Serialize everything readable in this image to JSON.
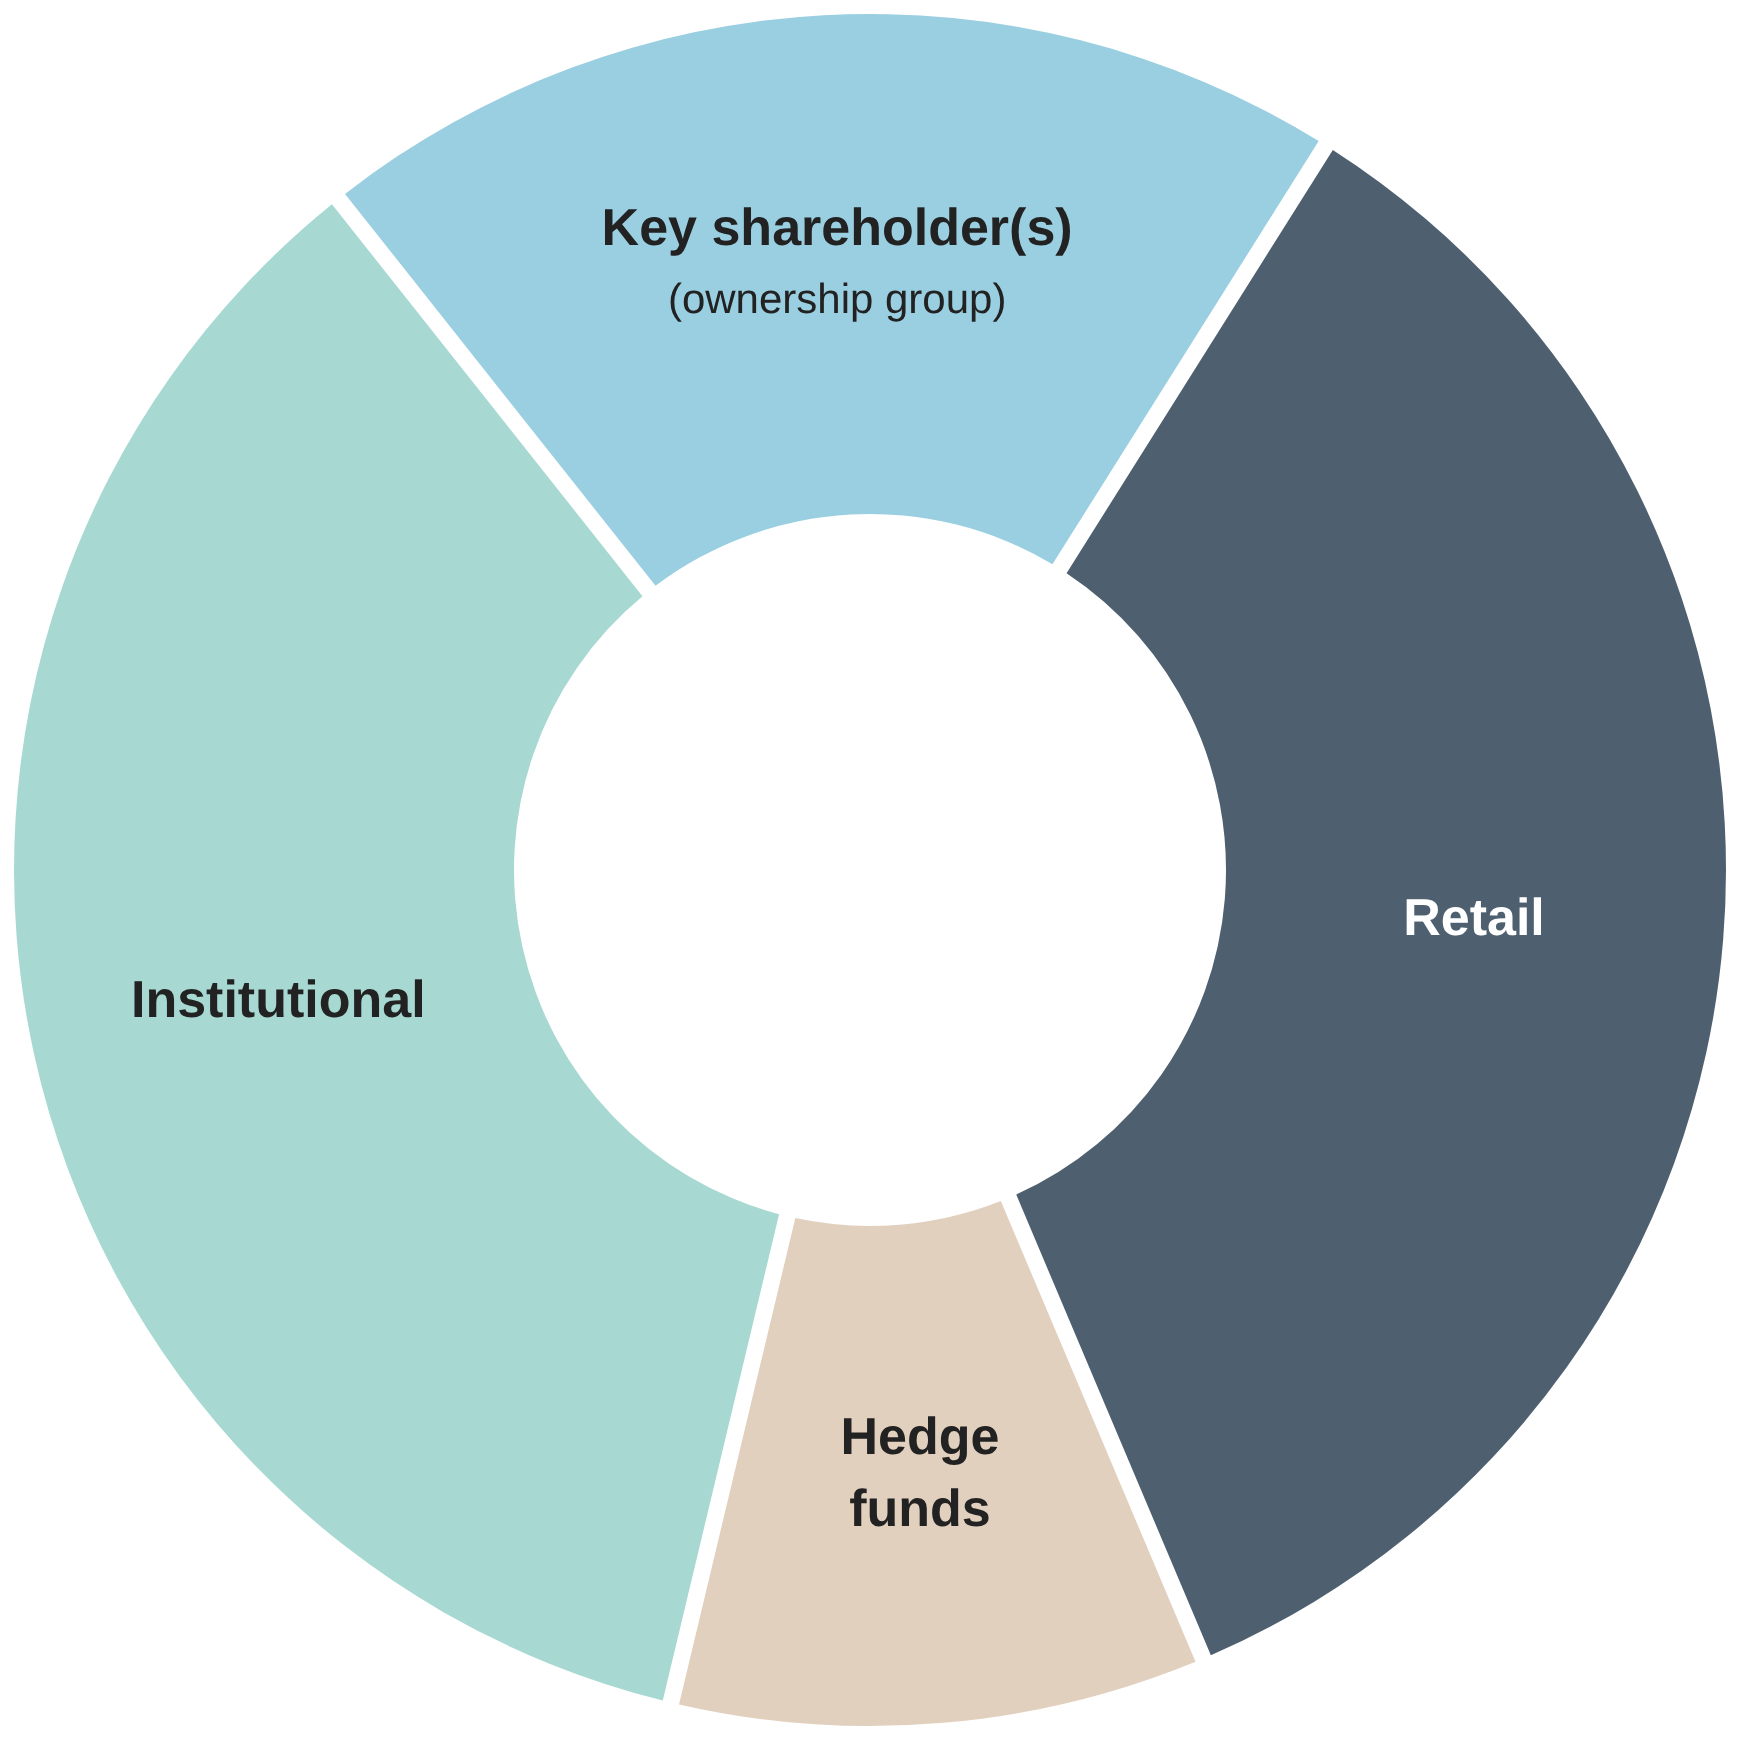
{
  "chart_data": {
    "type": "donut",
    "categories": [
      "Key shareholder(s)\n(ownership group)",
      "Retail",
      "Hedge\nfunds",
      "Institutional"
    ],
    "values": [
      19.6,
      34.7,
      10.1,
      35.6
    ],
    "colors": [
      "#9acfe2",
      "#4e6070",
      "#e2d0bf",
      "#a7d9d2"
    ]
  }
}
